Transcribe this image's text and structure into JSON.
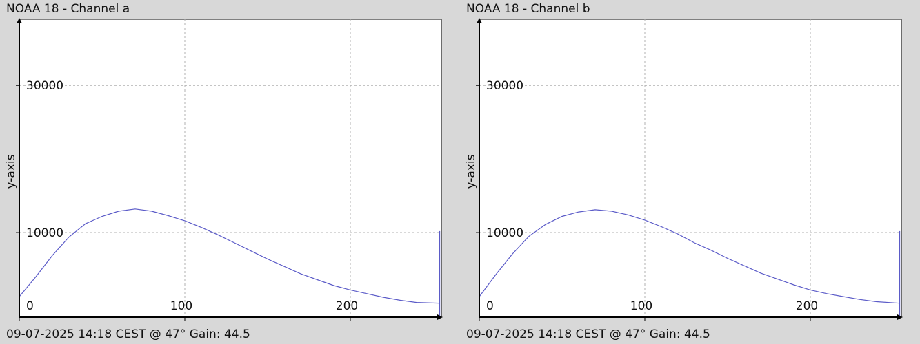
{
  "panels": [
    {
      "title": "NOAA 18 - Channel a",
      "footer": "09-07-2025 14:18 CEST @ 47° Gain: 44.5"
    },
    {
      "title": "NOAA 18 - Channel b",
      "footer": "09-07-2025 14:18 CEST @ 47° Gain: 44.5"
    }
  ],
  "colors": {
    "series": "#5b5bc8",
    "background": "#d8d8d8",
    "plot_bg": "#ffffff"
  },
  "chart_data": [
    {
      "type": "line",
      "title": "NOAA 18 - Channel a",
      "xlabel": "",
      "ylabel": "y-axis",
      "xlim": [
        0,
        255
      ],
      "ylim": [
        -1500,
        39000
      ],
      "xticks": [
        0,
        100,
        200
      ],
      "yticks": [
        10000,
        30000
      ],
      "grid": true,
      "x": [
        0,
        10,
        20,
        30,
        40,
        50,
        60,
        70,
        80,
        90,
        100,
        110,
        120,
        130,
        140,
        150,
        160,
        170,
        180,
        190,
        200,
        210,
        220,
        230,
        240,
        254
      ],
      "series": [
        {
          "values": [
            1300,
            4000,
            6900,
            9400,
            11200,
            12200,
            12900,
            13200,
            12900,
            12300,
            11600,
            10700,
            9700,
            8600,
            7500,
            6400,
            5400,
            4400,
            3600,
            2800,
            2200,
            1700,
            1200,
            800,
            500,
            400
          ]
        }
      ],
      "end_spike": {
        "x": 254,
        "y": 10200
      }
    },
    {
      "type": "line",
      "title": "NOAA 18 - Channel b",
      "xlabel": "",
      "ylabel": "y-axis",
      "xlim": [
        0,
        255
      ],
      "ylim": [
        -1500,
        39000
      ],
      "xticks": [
        0,
        100,
        200
      ],
      "yticks": [
        10000,
        30000
      ],
      "grid": true,
      "x": [
        0,
        10,
        20,
        30,
        40,
        50,
        60,
        70,
        80,
        90,
        100,
        110,
        120,
        130,
        140,
        150,
        160,
        170,
        180,
        190,
        200,
        210,
        220,
        230,
        240,
        254
      ],
      "series": [
        {
          "values": [
            1300,
            4300,
            7100,
            9500,
            11100,
            12200,
            12800,
            13100,
            12900,
            12400,
            11700,
            10800,
            9800,
            8600,
            7600,
            6500,
            5500,
            4500,
            3700,
            2900,
            2200,
            1700,
            1300,
            900,
            600,
            400
          ]
        }
      ],
      "end_spike": {
        "x": 254,
        "y": 10200
      }
    }
  ]
}
